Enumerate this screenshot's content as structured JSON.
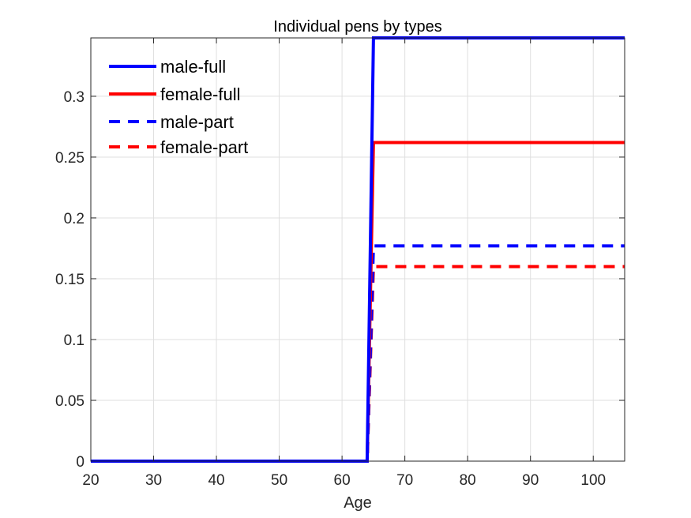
{
  "chart_data": {
    "type": "line",
    "title": "Individual pens by types",
    "xlabel": "Age",
    "ylabel": "",
    "xlim": [
      20,
      105
    ],
    "ylim": [
      0,
      0.348
    ],
    "xticks": [
      20,
      30,
      40,
      50,
      60,
      70,
      80,
      90,
      100
    ],
    "xtick_labels": [
      "20",
      "30",
      "40",
      "50",
      "60",
      "70",
      "80",
      "90",
      "100"
    ],
    "yticks": [
      0,
      0.05,
      0.1,
      0.15,
      0.2,
      0.25,
      0.3
    ],
    "ytick_labels": [
      "0",
      "0.05",
      "0.1",
      "0.15",
      "0.2",
      "0.25",
      "0.3"
    ],
    "grid": true,
    "legend_position": "top-left",
    "series": [
      {
        "name": "male-full",
        "color": "#0000ff",
        "style": "solid",
        "x": [
          20,
          64,
          65,
          105
        ],
        "y": [
          0,
          0,
          0.348,
          0.348
        ]
      },
      {
        "name": "female-full",
        "color": "#ff0000",
        "style": "solid",
        "x": [
          20,
          64,
          65,
          105
        ],
        "y": [
          0,
          0,
          0.262,
          0.262
        ]
      },
      {
        "name": "male-part",
        "color": "#0000ff",
        "style": "dashed",
        "x": [
          20,
          64,
          65,
          105
        ],
        "y": [
          0,
          0,
          0.177,
          0.177
        ]
      },
      {
        "name": "female-part",
        "color": "#ff0000",
        "style": "dashed",
        "x": [
          20,
          64,
          65,
          105
        ],
        "y": [
          0,
          0,
          0.16,
          0.16
        ]
      }
    ]
  }
}
